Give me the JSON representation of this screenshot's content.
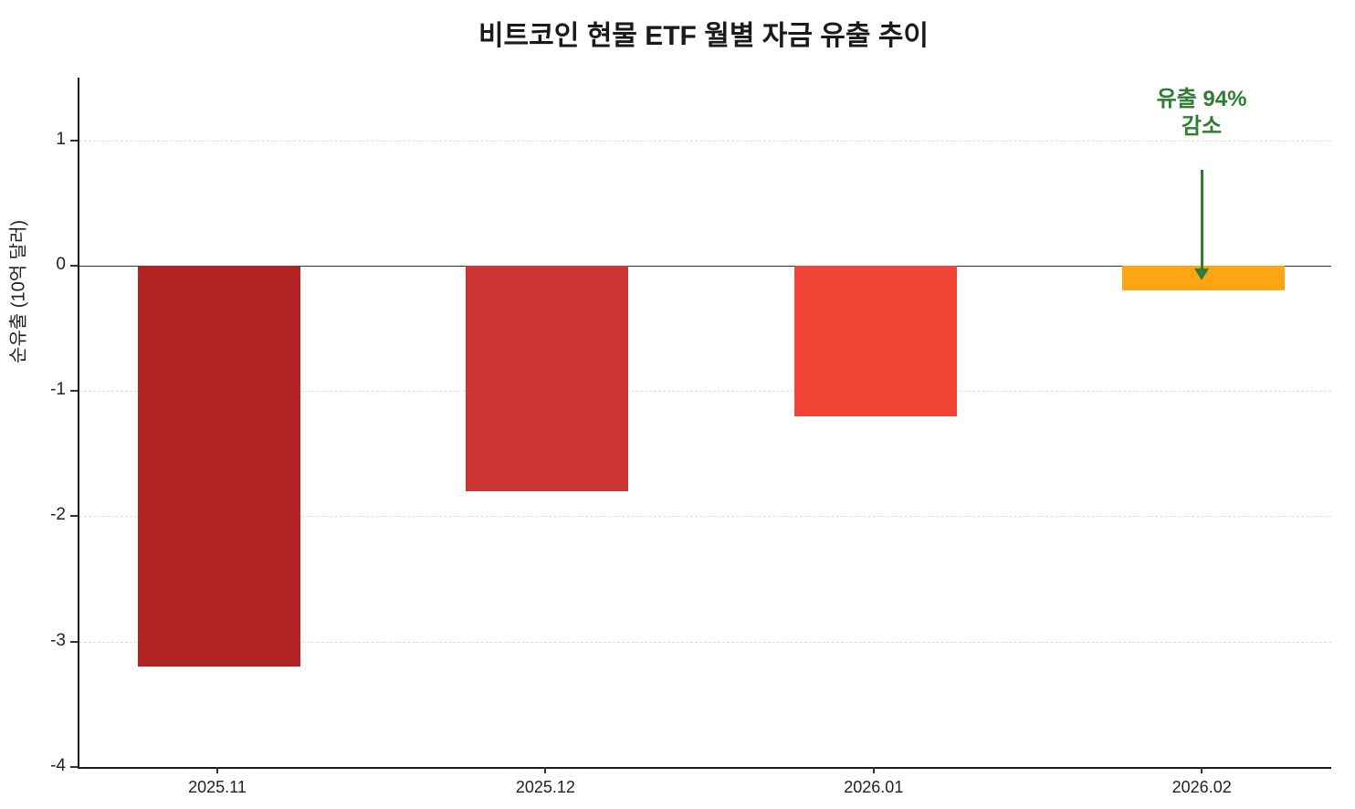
{
  "chart_data": {
    "type": "bar",
    "title": "비트코인 현물 ETF 월별 자금 유출 추이",
    "ylabel": "순유출 (10억 달러)",
    "xlabel": "",
    "categories": [
      "2025.11",
      "2025.12",
      "2026.01",
      "2026.02"
    ],
    "values": [
      -3.2,
      -1.8,
      -1.2,
      -0.2
    ],
    "bar_colors": [
      "#b22222",
      "#cd3535",
      "#ef4638",
      "#ffa513"
    ],
    "ylim": [
      -4,
      1.5
    ],
    "yticks": [
      1,
      0,
      -1,
      -2,
      -3,
      -4
    ],
    "grid": "horizontal-dashed",
    "legend": "none",
    "annotation": {
      "line1": "유출 94%",
      "line2": "감소",
      "color": "#2e7d32",
      "target_category": "2026.02",
      "arrow": "down"
    }
  }
}
